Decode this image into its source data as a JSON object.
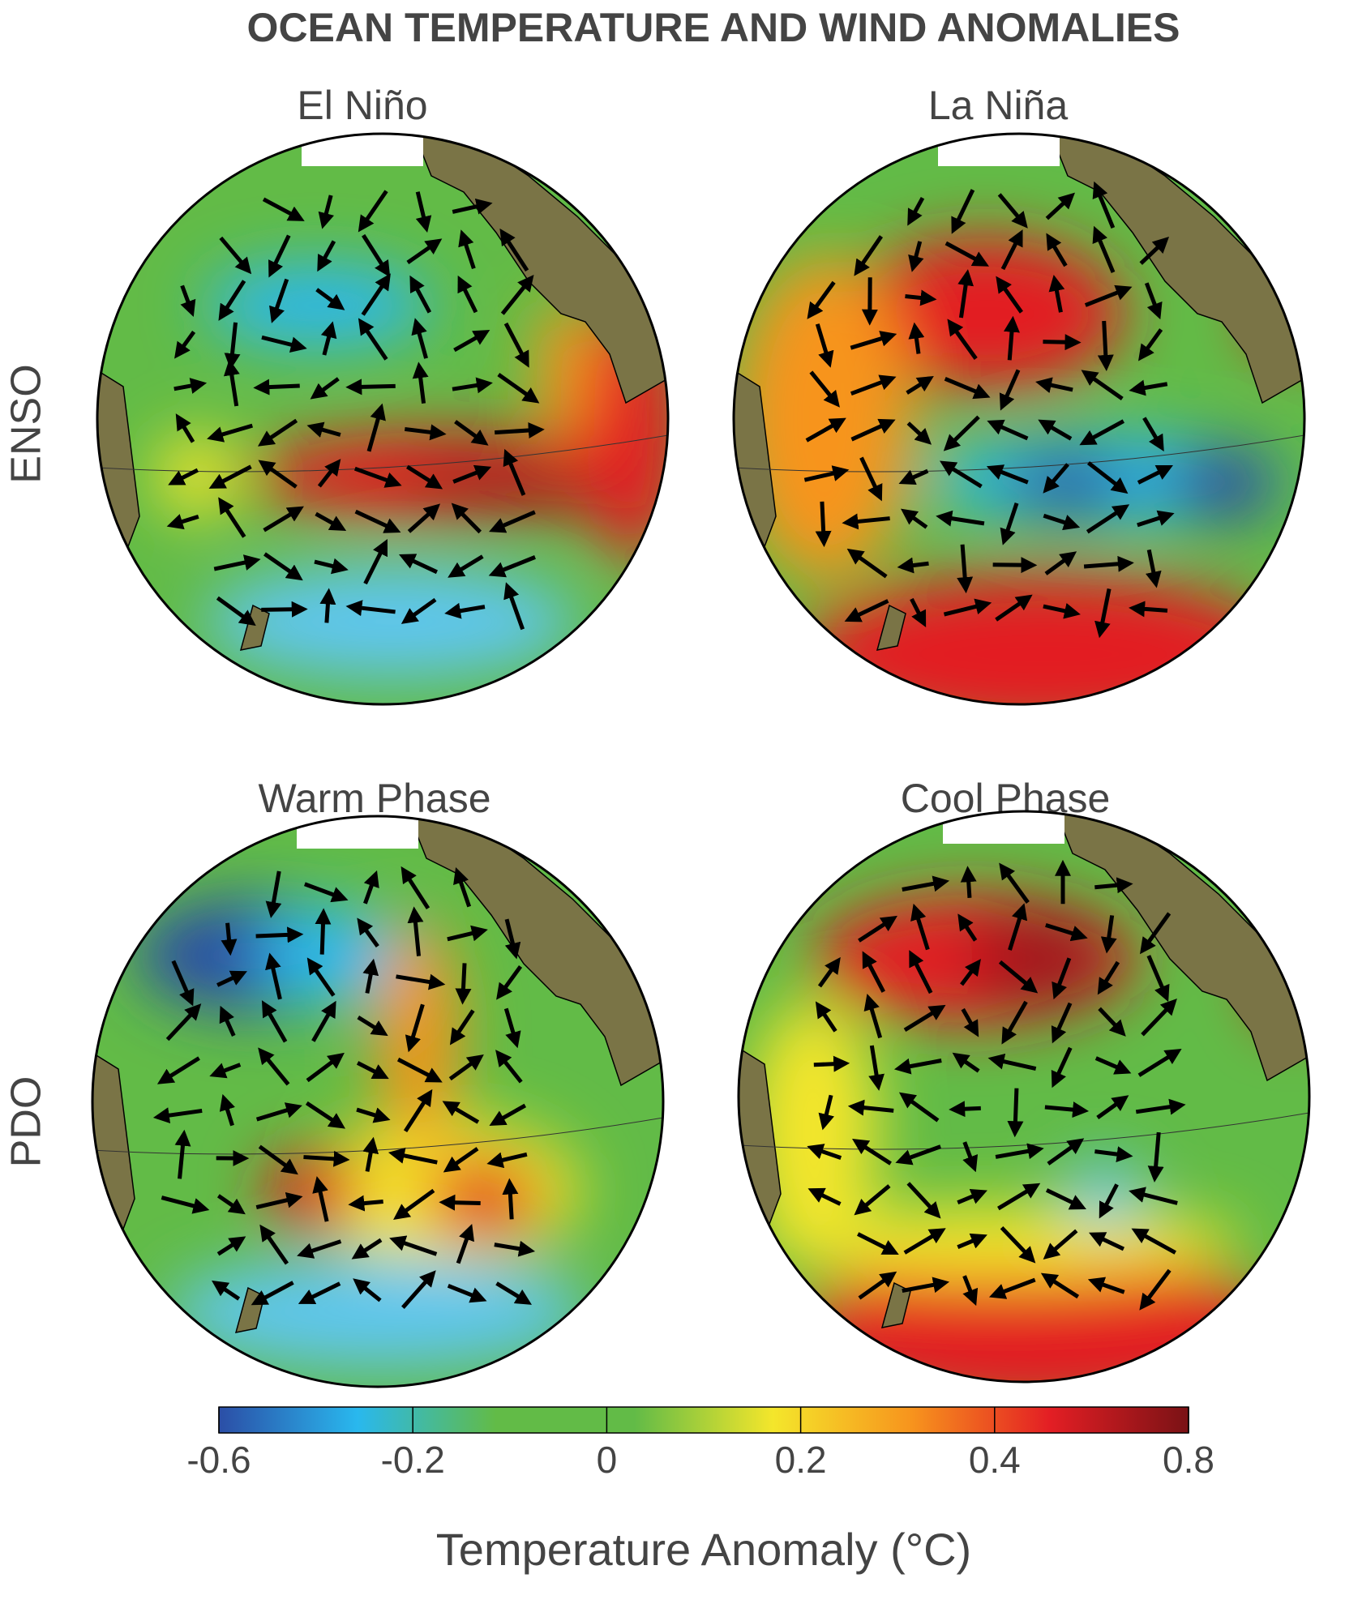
{
  "title": "OCEAN TEMPERATURE AND WIND ANOMALIES",
  "rows": [
    {
      "label": "ENSO",
      "panels": [
        {
          "title": "El Niño"
        },
        {
          "title": "La Niña"
        }
      ]
    },
    {
      "label": "PDO",
      "panels": [
        {
          "title": "Warm Phase"
        },
        {
          "title": "Cool Phase"
        }
      ]
    }
  ],
  "colorbar": {
    "label": "Temperature Anomaly (°C)",
    "ticks": [
      -0.6,
      -0.2,
      0,
      0.2,
      0.4,
      0.8
    ],
    "colors": [
      "#2b4ea6",
      "#29b8ee",
      "#62bb47",
      "#62bb47",
      "#f4e62b",
      "#f7941d",
      "#e31e24",
      "#7a1215"
    ]
  }
}
